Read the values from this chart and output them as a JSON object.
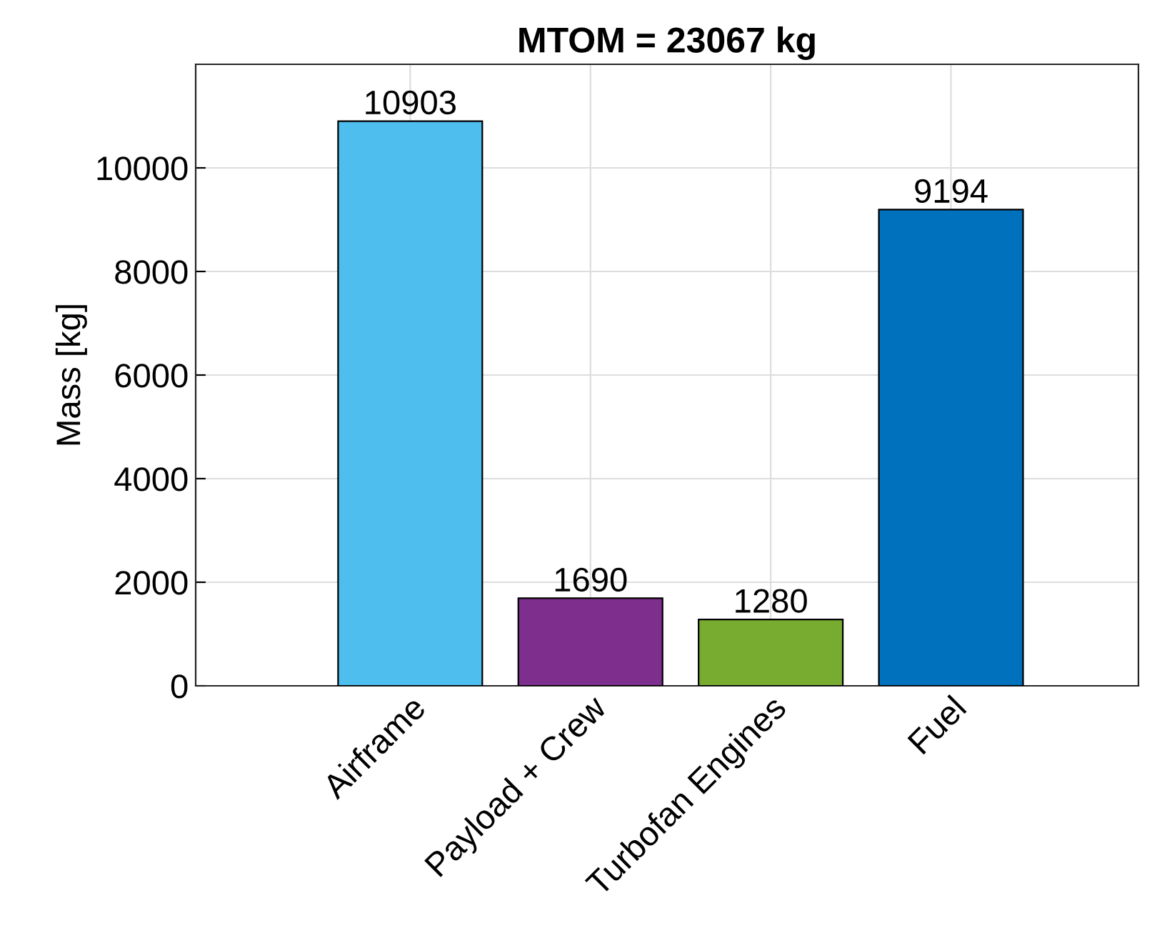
{
  "chart_data": {
    "type": "bar",
    "title": "MTOM = 23067 kg",
    "ylabel": "Mass [kg]",
    "categories": [
      "Airframe",
      "Payload + Crew",
      "Turbofan Engines",
      "Fuel"
    ],
    "values": [
      10903,
      1690,
      1280,
      9194
    ],
    "colors": [
      "#4dbeee",
      "#7e2f8e",
      "#77ac30",
      "#0072bd"
    ],
    "ylim": [
      0,
      12000
    ],
    "yticks": [
      0,
      2000,
      4000,
      6000,
      8000,
      10000
    ],
    "data_labels": true,
    "grid": true
  }
}
